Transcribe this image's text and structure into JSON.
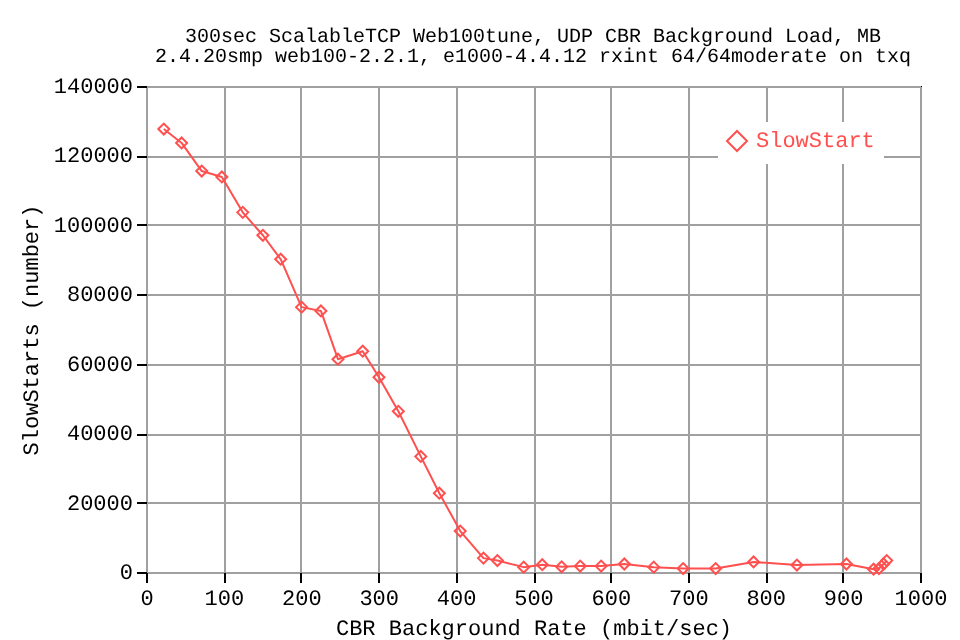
{
  "chart_data": {
    "type": "line",
    "title": "300sec ScalableTCP Web100tune, UDP CBR Background Load, MB",
    "subtitle": "2.4.20smp web100-2.2.1, e1000-4.4.12 rxint 64/64moderate on txq",
    "xlabel": "CBR Background Rate (mbit/sec)",
    "ylabel": "SlowStarts (number)",
    "x": [
      23,
      46,
      72,
      98,
      125,
      151,
      174,
      201,
      226,
      248,
      280,
      301,
      326,
      355,
      379,
      406,
      436,
      454,
      488,
      512,
      537,
      561,
      588,
      618,
      656,
      694,
      736,
      785,
      841,
      905,
      940,
      947,
      953,
      957
    ],
    "series": [
      {
        "name": "SlowStart",
        "color": "#ff5050",
        "values": [
          127600,
          123600,
          115500,
          113800,
          103600,
          97000,
          90100,
          76300,
          75200,
          61300,
          63600,
          56100,
          46300,
          33300,
          22700,
          11800,
          4000,
          3300,
          1400,
          2100,
          1500,
          1700,
          1700,
          2300,
          1400,
          1000,
          1000,
          2900,
          2000,
          2300,
          800,
          1000,
          2300,
          3300
        ]
      }
    ],
    "xlim": [
      0,
      1000
    ],
    "xticks": [
      0,
      100,
      200,
      300,
      400,
      500,
      600,
      700,
      800,
      900,
      1000
    ],
    "ylim": [
      0,
      140000
    ],
    "yticks": [
      0,
      20000,
      40000,
      60000,
      80000,
      100000,
      120000,
      140000
    ],
    "grid": true,
    "legend": "top right",
    "marker": "diamond",
    "line_style": "solid"
  }
}
